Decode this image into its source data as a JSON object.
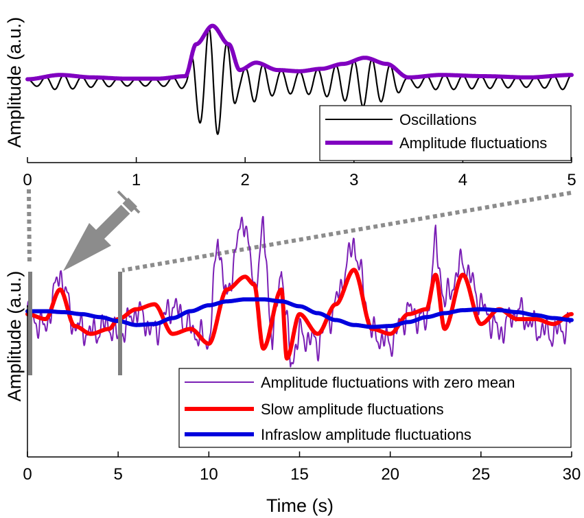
{
  "chart_data": [
    {
      "type": "line",
      "panel": "top",
      "xlabel": "",
      "ylabel": "Amplitude (a.u.)",
      "xlim": [
        0,
        5
      ],
      "ylim": [
        -1.25,
        1.25
      ],
      "xticks": [
        0,
        1,
        2,
        3,
        4,
        5
      ],
      "xtick_labels": [
        "0",
        "1",
        "2",
        "3",
        "4",
        "5"
      ],
      "legend_position": "bottom-right",
      "series": [
        {
          "name": "Oscillations",
          "color": "#000000",
          "envelope_knots_x": [
            0,
            0.3,
            0.6,
            0.9,
            1.2,
            1.45,
            1.55,
            1.7,
            1.85,
            1.95,
            2.1,
            2.3,
            2.5,
            2.7,
            2.9,
            3.1,
            3.3,
            3.5,
            3.8,
            4.2,
            4.6,
            5.0
          ],
          "envelope_knots_y": [
            0.05,
            0.12,
            0.08,
            0.06,
            0.06,
            0.1,
            0.62,
            0.92,
            0.62,
            0.2,
            0.32,
            0.2,
            0.18,
            0.22,
            0.3,
            0.4,
            0.3,
            0.08,
            0.12,
            0.1,
            0.08,
            0.12
          ],
          "frequency_hz": 6.0
        },
        {
          "name": "Amplitude fluctuations",
          "color": "#8000c0",
          "x": [
            0,
            0.3,
            0.6,
            0.9,
            1.2,
            1.45,
            1.55,
            1.7,
            1.85,
            1.95,
            2.1,
            2.3,
            2.5,
            2.7,
            2.9,
            3.1,
            3.3,
            3.5,
            3.8,
            4.2,
            4.6,
            5.0
          ],
          "y": [
            0.05,
            0.12,
            0.08,
            0.06,
            0.06,
            0.1,
            0.62,
            0.92,
            0.62,
            0.2,
            0.32,
            0.2,
            0.18,
            0.22,
            0.3,
            0.4,
            0.3,
            0.08,
            0.12,
            0.1,
            0.08,
            0.12
          ]
        }
      ]
    },
    {
      "type": "line",
      "panel": "bottom",
      "xlabel": "Time (s)",
      "ylabel": "Amplitude (a.u.)",
      "xlim": [
        0,
        30
      ],
      "ylim": [
        -1.45,
        1.1
      ],
      "xticks": [
        0,
        5,
        10,
        15,
        20,
        25,
        30
      ],
      "xtick_labels": [
        "0",
        "5",
        "10",
        "15",
        "20",
        "25",
        "30"
      ],
      "legend_position": "bottom-right",
      "zoom_window": [
        0,
        5
      ],
      "series": [
        {
          "name": "Amplitude fluctuations with zero mean",
          "color": "#7a1fb5",
          "x": [
            0,
            1,
            1.8,
            2.5,
            3.5,
            4.5,
            5,
            6,
            7,
            8,
            9,
            10,
            10.5,
            11,
            11.5,
            12,
            12.5,
            13,
            13.5,
            14,
            14.5,
            15,
            16,
            17,
            18,
            19,
            20,
            21,
            22,
            22.5,
            23,
            24,
            25,
            26,
            27,
            28,
            29,
            30
          ],
          "y": [
            0,
            -0.15,
            0.45,
            -0.1,
            -0.2,
            -0.1,
            -0.25,
            0.05,
            -0.2,
            0.1,
            -0.15,
            -0.3,
            0.8,
            0.1,
            0.7,
            1.0,
            0.2,
            0.9,
            -0.3,
            0.5,
            -0.5,
            -0.2,
            -0.3,
            0.1,
            0.75,
            -0.2,
            -0.3,
            0.05,
            -0.1,
            0.75,
            0.1,
            0.55,
            0.1,
            -0.2,
            0.05,
            -0.15,
            -0.2,
            -0.1
          ],
          "plot_style": "jagged"
        },
        {
          "name": "Slow amplitude fluctuations",
          "color": "#ff0000",
          "x": [
            0,
            1,
            1.8,
            2.6,
            3.5,
            4.5,
            5,
            6,
            7,
            8,
            9,
            10,
            11,
            12,
            12.5,
            13,
            14,
            14.3,
            15,
            16,
            17,
            18,
            19,
            20,
            21,
            22,
            22.5,
            23,
            24,
            25,
            26,
            27,
            28,
            29,
            30
          ],
          "y": [
            0,
            -0.05,
            0.25,
            -0.12,
            -0.2,
            -0.15,
            -0.05,
            0.05,
            0.1,
            -0.2,
            -0.15,
            -0.3,
            0.25,
            0.38,
            0.3,
            -0.35,
            0.25,
            -0.45,
            0.0,
            -0.2,
            0.1,
            0.45,
            -0.15,
            -0.2,
            0.0,
            0.05,
            0.4,
            -0.15,
            0.4,
            -0.1,
            0.05,
            -0.05,
            -0.05,
            -0.1,
            0.0
          ],
          "plot_style": "smooth"
        },
        {
          "name": "Infraslow amplitude fluctuations",
          "color": "#0000dd",
          "x": [
            0,
            1,
            2,
            3,
            4,
            5,
            6,
            7,
            8,
            9,
            10,
            11,
            12,
            13,
            14,
            15,
            16,
            17,
            18,
            19,
            20,
            21,
            22,
            23,
            24,
            25,
            26,
            27,
            28,
            29,
            30
          ],
          "y": [
            0.03,
            0.03,
            0.02,
            0.0,
            -0.03,
            -0.07,
            -0.11,
            -0.1,
            -0.04,
            0.03,
            0.09,
            0.13,
            0.15,
            0.15,
            0.13,
            0.08,
            0.01,
            -0.06,
            -0.11,
            -0.13,
            -0.12,
            -0.08,
            -0.03,
            0.01,
            0.04,
            0.05,
            0.04,
            0.02,
            -0.01,
            -0.04,
            -0.06
          ],
          "plot_style": "smooth"
        }
      ]
    }
  ]
}
